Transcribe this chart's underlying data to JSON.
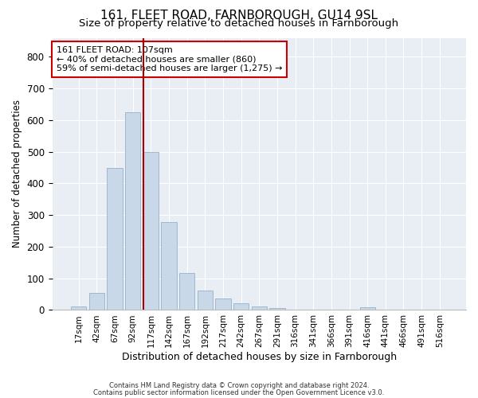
{
  "title": "161, FLEET ROAD, FARNBOROUGH, GU14 9SL",
  "subtitle": "Size of property relative to detached houses in Farnborough",
  "xlabel": "Distribution of detached houses by size in Farnborough",
  "ylabel": "Number of detached properties",
  "footnote1": "Contains HM Land Registry data © Crown copyright and database right 2024.",
  "footnote2": "Contains public sector information licensed under the Open Government Licence v3.0.",
  "bar_labels": [
    "17sqm",
    "42sqm",
    "67sqm",
    "92sqm",
    "117sqm",
    "142sqm",
    "167sqm",
    "192sqm",
    "217sqm",
    "242sqm",
    "267sqm",
    "291sqm",
    "316sqm",
    "341sqm",
    "366sqm",
    "391sqm",
    "416sqm",
    "441sqm",
    "466sqm",
    "491sqm",
    "516sqm"
  ],
  "bar_values": [
    12,
    55,
    450,
    625,
    500,
    278,
    118,
    62,
    37,
    22,
    10,
    7,
    0,
    0,
    0,
    0,
    8,
    0,
    0,
    0,
    0
  ],
  "bar_color": "#c8d8e8",
  "bar_edge_color": "#a0b8cc",
  "vline_color": "#aa0000",
  "annotation_text": "161 FLEET ROAD: 107sqm\n← 40% of detached houses are smaller (860)\n59% of semi-detached houses are larger (1,275) →",
  "annotation_box_color": "#ffffff",
  "annotation_box_edge": "#cc0000",
  "ylim": [
    0,
    860
  ],
  "bg_color": "#e8eef4",
  "title_fontsize": 11,
  "subtitle_fontsize": 9.5,
  "tick_fontsize": 7.5,
  "ylabel_fontsize": 8.5,
  "xlabel_fontsize": 9,
  "annot_fontsize": 8
}
